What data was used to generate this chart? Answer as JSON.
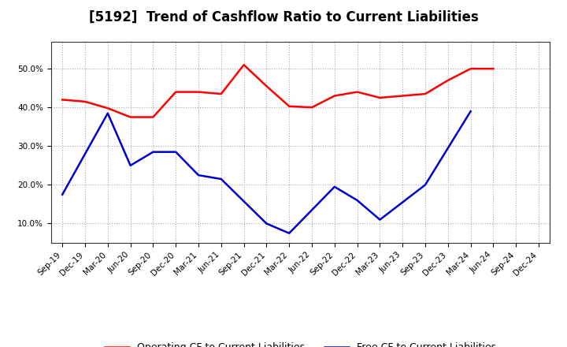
{
  "title": "[5192]  Trend of Cashflow Ratio to Current Liabilities",
  "x_labels": [
    "Sep-19",
    "Dec-19",
    "Mar-20",
    "Jun-20",
    "Sep-20",
    "Dec-20",
    "Mar-21",
    "Jun-21",
    "Sep-21",
    "Dec-21",
    "Mar-22",
    "Jun-22",
    "Sep-22",
    "Dec-22",
    "Mar-23",
    "Jun-23",
    "Sep-23",
    "Dec-23",
    "Mar-24",
    "Jun-24",
    "Sep-24",
    "Dec-24"
  ],
  "operating_cf": [
    0.42,
    0.415,
    0.398,
    0.375,
    0.375,
    0.44,
    0.44,
    0.435,
    0.51,
    0.455,
    0.403,
    0.4,
    0.43,
    0.44,
    0.425,
    0.43,
    0.435,
    0.47,
    0.5,
    0.5,
    null,
    null
  ],
  "free_cf": [
    0.175,
    null,
    0.385,
    0.25,
    0.285,
    0.285,
    0.225,
    0.215,
    null,
    0.1,
    0.075,
    null,
    0.195,
    0.16,
    0.11,
    null,
    0.2,
    null,
    0.39,
    null,
    null,
    null
  ],
  "operating_color": "#ff0000",
  "free_color": "#0000cc",
  "ylim": [
    0.05,
    0.57
  ],
  "yticks": [
    0.1,
    0.2,
    0.3,
    0.4,
    0.5
  ],
  "legend_operating": "Operating CF to Current Liabilities",
  "legend_free": "Free CF to Current Liabilities",
  "background_color": "#ffffff",
  "title_fontsize": 12,
  "tick_fontsize": 7.5,
  "legend_fontsize": 9,
  "linewidth": 1.8
}
